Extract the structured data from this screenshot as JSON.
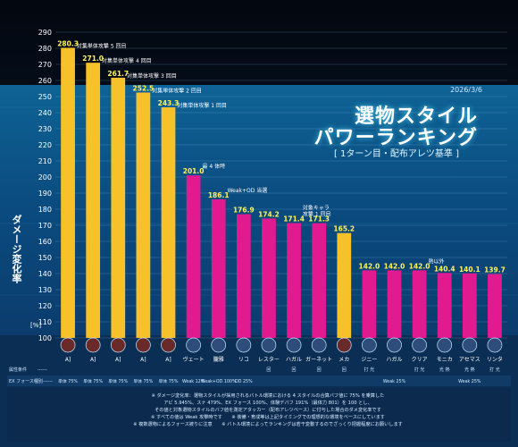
{
  "header": {
    "title_line1": "選物スタイル",
    "title_line2": "パワーランキング",
    "subtitle": "[ 1ターン目・配布アレツ基準 ]",
    "date": "2026/3/6"
  },
  "colors": {
    "yellow_bar": "#f7c12a",
    "pink_bar": "#e21a8f",
    "background": "#0a2a4d",
    "panel": "#0d5a8a"
  },
  "chart_data": {
    "type": "bar",
    "ylabel": "ダメージ変化率",
    "y_unit": "[%]",
    "ylim": [
      100,
      290
    ],
    "yticks": [
      100,
      110,
      120,
      130,
      140,
      150,
      160,
      170,
      180,
      190,
      200,
      210,
      220,
      230,
      240,
      250,
      260,
      270,
      280,
      290
    ],
    "bars": [
      {
        "value": 280.3,
        "label": "280.3",
        "annotation": "対集単体攻撃 5 回目",
        "color": "yellow",
        "name": "A]",
        "cond1": "",
        "cond2": "単体 75%"
      },
      {
        "value": 271.0,
        "label": "271.0",
        "annotation": "対集単体攻撃 4 回目",
        "color": "yellow",
        "name": "A]",
        "cond1": "",
        "cond2": "単体 75%"
      },
      {
        "value": 261.7,
        "label": "261.7",
        "annotation": "対集単体攻撃 3 回目",
        "color": "yellow",
        "name": "A]",
        "cond1": "",
        "cond2": "単体 75%"
      },
      {
        "value": 252.5,
        "label": "252.5",
        "annotation": "対集単体攻撃 2 回目",
        "color": "yellow",
        "name": "A]",
        "cond1": "",
        "cond2": "単体 75%"
      },
      {
        "value": 243.3,
        "label": "243.3",
        "annotation": "対集単体攻撃 1 回目",
        "color": "yellow",
        "name": "A]",
        "cond1": "",
        "cond2": "単体 75%"
      },
      {
        "value": 201.0,
        "label": "201.0",
        "annotation": "最 4 体時",
        "color": "pink",
        "name": "ヴェート",
        "cond1": "",
        "cond2": "Weak 12%"
      },
      {
        "value": 186.1,
        "label": "186.1",
        "annotation": "Weak+OD 当選",
        "color": "pink",
        "name": "朧雅",
        "cond1": "",
        "cond2": "Weak+OD 100%"
      },
      {
        "value": 176.9,
        "label": "176.9",
        "annotation": "",
        "color": "pink",
        "name": "リコ",
        "cond1": "",
        "cond2": "OD 25%"
      },
      {
        "value": 174.2,
        "label": "174.2",
        "annotation": "",
        "color": "pink",
        "name": "レスター",
        "cond1": "回",
        "cond2": ""
      },
      {
        "value": 171.4,
        "label": "171.4",
        "annotation": "対象キャラ\n攻撃 1 回目",
        "color": "pink",
        "name": "ハガル",
        "cond1": "回",
        "cond2": ""
      },
      {
        "value": 171.3,
        "label": "171.3",
        "annotation": "",
        "color": "pink",
        "name": "ガーネット",
        "cond1": "回",
        "cond2": ""
      },
      {
        "value": 165.2,
        "label": "165.2",
        "annotation": "",
        "color": "yellow",
        "name": "メカ",
        "cond1": "回",
        "cond2": ""
      },
      {
        "value": 142.0,
        "label": "142.0",
        "annotation": "",
        "color": "pink",
        "name": "ジニー",
        "cond1": "打 光",
        "cond2": ""
      },
      {
        "value": 142.0,
        "label": "142.0",
        "annotation": "",
        "color": "pink",
        "name": "ハガル",
        "cond1": "",
        "cond2": "Weak 25%"
      },
      {
        "value": 142.0,
        "label": "142.0",
        "annotation": "熱以外",
        "color": "pink",
        "name": "クリア",
        "cond1": "打 光",
        "cond2": ""
      },
      {
        "value": 140.4,
        "label": "140.4",
        "annotation": "",
        "color": "pink",
        "name": "モニカ",
        "cond1": "光 熱",
        "cond2": ""
      },
      {
        "value": 140.1,
        "label": "140.1",
        "annotation": "",
        "color": "pink",
        "name": "アセマス",
        "cond1": "光 熱",
        "cond2": "Weak 25%"
      },
      {
        "value": 139.7,
        "label": "139.7",
        "annotation": "",
        "color": "pink",
        "name": "リンタ",
        "cond1": "打 光",
        "cond2": ""
      }
    ]
  },
  "row_labels": {
    "cond1": "属性条件",
    "cond1_dash": "------",
    "cond2": "EX フォース種別",
    "cond2_dash": "------"
  },
  "notes": [
    "※ ダメージ変化率：選物スタイルが採用されるバトル環境における 4 スタイルの合算バフ値に 75% を乗算した",
    "アビ 5.945%、スナ 479%、EX フォース 100%、体験デバフ 191%（最体力 801）を 100 とし、",
    "その値と対象選物スタイルのバフ値を測定アタッカー（配布アレツベース）に付与した場合のダメ変化率です",
    "※ すべての値は Weak 攻撃時です　　※ 装備・育成等は上記タイミングでの理想的な環境をベースにしています",
    "※ 複数選物によるフォース被りに注意　　※ バトル環境によってランキングは若干変動するのでざっくり把握程度にお願いします"
  ]
}
